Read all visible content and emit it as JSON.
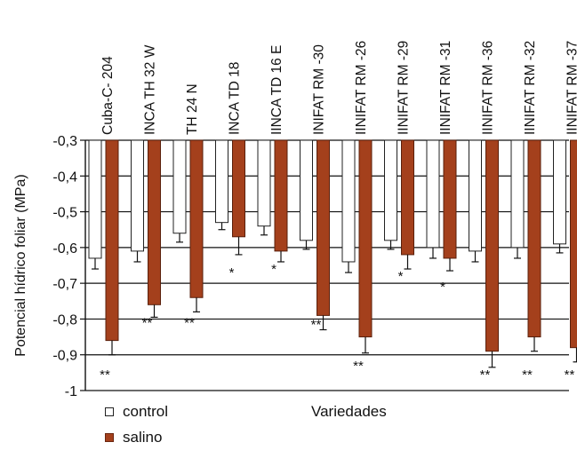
{
  "chart_data": {
    "type": "bar",
    "title": "",
    "xlabel": "Variedades",
    "ylabel": "Potencial hídrico foliar (MPa)",
    "ylim": [
      -1.0,
      -0.3
    ],
    "yticks": [
      -0.3,
      -0.4,
      -0.5,
      -0.6,
      -0.7,
      -0.8,
      -0.9,
      -1.0
    ],
    "ytick_labels": [
      "-0,3",
      "-0,4",
      "-0,5",
      "-0,6",
      "-0,7",
      "-0,8",
      "-0,9",
      "-1"
    ],
    "grid": "horizontal",
    "categories": [
      "Cuba-C- 204",
      "INCA TH 32 W",
      "TH 24 N",
      "INCA TD 18",
      "IINCA TD 16 E",
      "INIFAT RM -30",
      "IINIFAT RM -26",
      "IINIFAT RM -29",
      "IINIFAT RM -31",
      "IINIFAT RM -36",
      "IINIFAT RM -32",
      "IINIFAT RM -37"
    ],
    "series": [
      {
        "name": "control",
        "color": "#ffffff",
        "values": [
          -0.63,
          -0.61,
          -0.56,
          -0.53,
          -0.54,
          -0.58,
          -0.64,
          -0.58,
          -0.6,
          -0.61,
          -0.6,
          -0.59
        ],
        "errors": [
          0.03,
          0.03,
          0.025,
          0.02,
          0.025,
          0.025,
          0.03,
          0.025,
          0.03,
          0.03,
          0.03,
          0.025
        ]
      },
      {
        "name": "salino",
        "color": "#a4401c",
        "values": [
          -0.86,
          -0.76,
          -0.74,
          -0.57,
          -0.61,
          -0.79,
          -0.85,
          -0.62,
          -0.63,
          -0.89,
          -0.85,
          -0.88
        ],
        "errors": [
          0.04,
          0.035,
          0.04,
          0.05,
          0.03,
          0.04,
          0.045,
          0.04,
          0.035,
          0.045,
          0.04,
          0.04
        ]
      }
    ],
    "significance": [
      "**",
      "**",
      "**",
      "*",
      "*",
      "**",
      "**",
      "*",
      "*",
      "**",
      "**",
      "**"
    ],
    "significance_y": [
      -0.955,
      -0.81,
      -0.81,
      -0.67,
      -0.66,
      -0.815,
      -0.93,
      -0.68,
      -0.71,
      -0.955,
      -0.955,
      -0.955
    ],
    "legend": {
      "placement": "bottom-left",
      "entries": [
        "control",
        "salino"
      ]
    }
  }
}
